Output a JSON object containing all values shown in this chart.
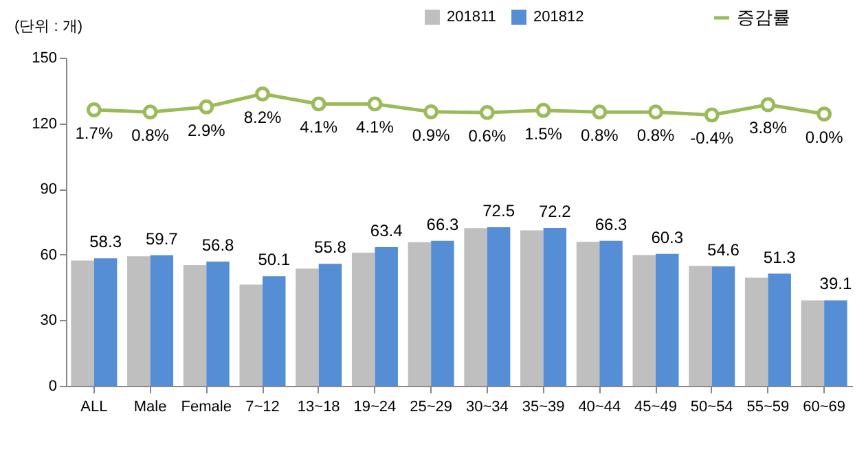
{
  "chart_data": {
    "type": "bar",
    "ylabel": "(단위 : 개)",
    "categories": [
      "ALL",
      "Male",
      "Female",
      "7~12",
      "13~18",
      "19~24",
      "25~29",
      "30~34",
      "35~39",
      "40~44",
      "45~49",
      "50~54",
      "55~59",
      "60~69"
    ],
    "series": [
      {
        "name": "201811",
        "color": "#bfbfbf",
        "values": [
          57.3,
          59.2,
          55.2,
          46.3,
          53.6,
          60.9,
          65.7,
          72.1,
          71.1,
          65.8,
          59.8,
          54.8,
          49.4,
          39.1
        ]
      },
      {
        "name": "201812",
        "color": "#558ed5",
        "values": [
          58.3,
          59.7,
          56.8,
          50.1,
          55.8,
          63.4,
          66.3,
          72.5,
          72.2,
          66.3,
          60.3,
          54.6,
          51.3,
          39.1
        ],
        "value_labels": [
          "58.3",
          "59.7",
          "56.8",
          "50.1",
          "55.8",
          "63.4",
          "66.3",
          "72.5",
          "72.2",
          "66.3",
          "60.3",
          "54.6",
          "51.3",
          "39.1"
        ]
      },
      {
        "name": "증감률",
        "type": "line",
        "axis": "y2",
        "marker": "circle",
        "color": "#9bbb59",
        "values": [
          1.7,
          0.8,
          2.9,
          8.2,
          4.1,
          4.1,
          0.9,
          0.6,
          1.5,
          0.8,
          0.8,
          -0.4,
          3.8,
          0.0
        ],
        "value_labels": [
          "1.7%",
          "0.8%",
          "2.9%",
          "8.2%",
          "4.1%",
          "4.1%",
          "0.9%",
          "0.6%",
          "1.5%",
          "0.8%",
          "0.8%",
          "-0.4%",
          "3.8%",
          "0.0%"
        ]
      }
    ],
    "ylim": [
      0,
      150
    ],
    "yticks": [
      0,
      30,
      60,
      90,
      120,
      150
    ],
    "y2lim": [
      -111,
      23
    ],
    "legend": "top right"
  }
}
